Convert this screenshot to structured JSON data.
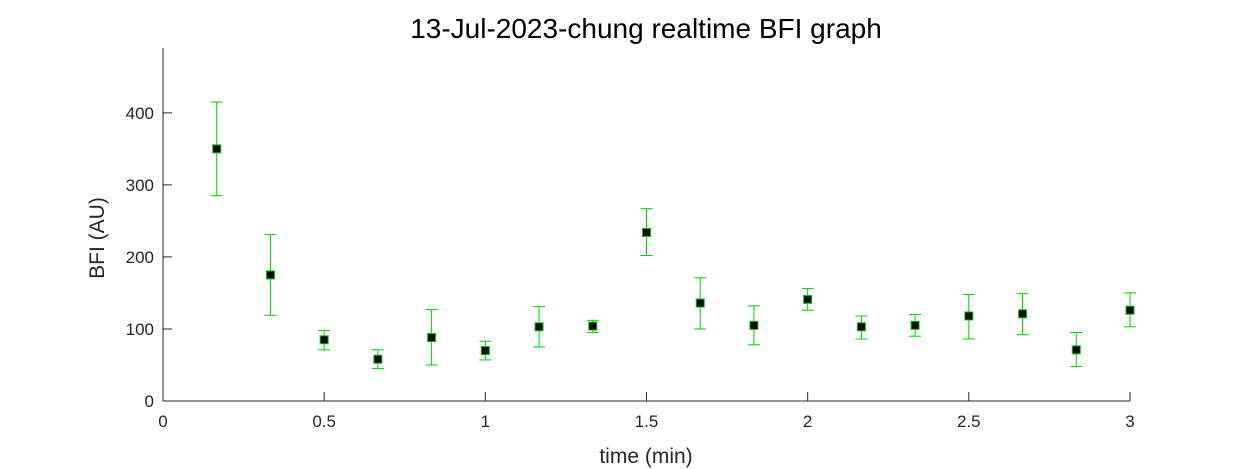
{
  "chart_data": {
    "type": "scatter",
    "title": "13-Jul-2023-chung realtime BFI graph",
    "xlabel": "time (min)",
    "ylabel": "BFI (AU)",
    "xlim": [
      0,
      3
    ],
    "ylim": [
      0,
      490
    ],
    "xticks": [
      0,
      0.5,
      1,
      1.5,
      2,
      2.5,
      3
    ],
    "xtick_labels": [
      "0",
      "0.5",
      "1",
      "1.5",
      "2",
      "2.5",
      "3"
    ],
    "yticks": [
      0,
      100,
      200,
      300,
      400
    ],
    "ytick_labels": [
      "0",
      "100",
      "200",
      "300",
      "400"
    ],
    "grid": false,
    "legend": "none",
    "marker_color": "#000000",
    "errorbar_color": "#00cc00",
    "series": [
      {
        "x": [
          0.1667,
          0.3333,
          0.5,
          0.6667,
          0.8333,
          1.0,
          1.1667,
          1.3333,
          1.5,
          1.6667,
          1.8333,
          2.0,
          2.1667,
          2.3333,
          2.5,
          2.6667,
          2.8333,
          3.0
        ],
        "y": [
          350,
          175,
          85,
          58,
          88,
          70,
          103,
          104,
          234,
          136,
          105,
          141,
          103,
          105,
          118,
          121,
          71,
          126
        ],
        "err_low": [
          285,
          119,
          71,
          45,
          50,
          57,
          75,
          95,
          202,
          100,
          78,
          126,
          86,
          90,
          86,
          92,
          48,
          103
        ],
        "err_high": [
          415,
          231,
          98,
          71,
          127,
          83,
          131,
          112,
          267,
          171,
          132,
          156,
          118,
          120,
          148,
          149,
          95,
          150
        ]
      }
    ]
  }
}
